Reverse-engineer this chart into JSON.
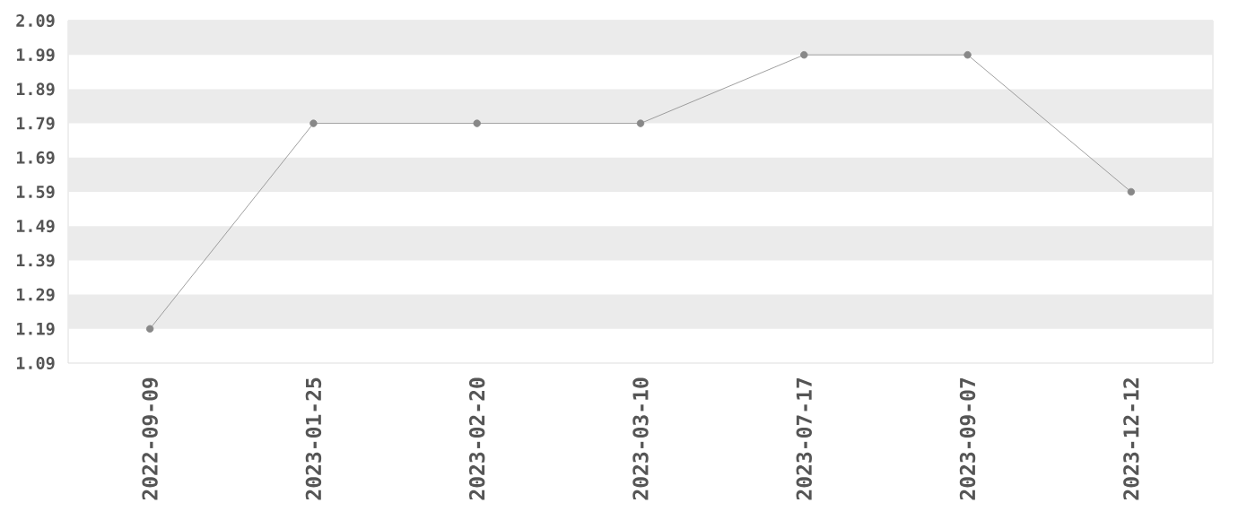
{
  "chart_data": {
    "type": "line",
    "categories": [
      "2022-09-09",
      "2023-01-25",
      "2023-02-20",
      "2023-03-10",
      "2023-07-17",
      "2023-09-07",
      "2023-12-12"
    ],
    "series": [
      {
        "color": "#888888",
        "values": [
          1.19,
          1.79,
          1.79,
          1.79,
          1.99,
          1.99,
          1.59
        ]
      }
    ],
    "ylim": [
      1.09,
      2.09
    ],
    "yticks": [
      1.09,
      1.19,
      1.29,
      1.39,
      1.49,
      1.59,
      1.69,
      1.79,
      1.89,
      1.99,
      2.09
    ],
    "marker": "circle",
    "line_style": "solid",
    "bands": [
      {
        "axis": "y",
        "from": 1.19,
        "to": 1.29,
        "color": "#ebebeb"
      },
      {
        "axis": "y",
        "from": 1.39,
        "to": 1.49,
        "color": "#ebebeb"
      },
      {
        "axis": "y",
        "from": 1.59,
        "to": 1.69,
        "color": "#ebebeb"
      },
      {
        "axis": "y",
        "from": 1.79,
        "to": 1.89,
        "color": "#ebebeb"
      },
      {
        "axis": "y",
        "from": 1.99,
        "to": 2.09,
        "color": "#ebebeb"
      }
    ]
  }
}
